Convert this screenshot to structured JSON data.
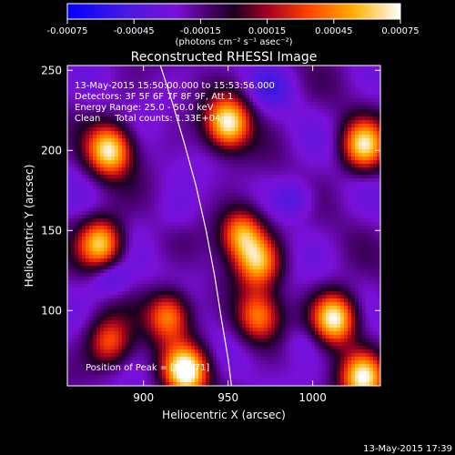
{
  "chart_data": {
    "type": "heatmap",
    "title": "Reconstructed RHESSI Image",
    "xlabel": "Heliocentric X (arcsec)",
    "ylabel": "Heliocentric Y (arcsec)",
    "xlim": [
      855,
      1040
    ],
    "ylim": [
      53,
      253
    ],
    "xticks": [
      900,
      950,
      1000
    ],
    "yticks": [
      100,
      150,
      200,
      250
    ],
    "grid": false,
    "colorbar": {
      "min": -0.00075,
      "max": 0.00075,
      "ticks": [
        "-0.00075",
        "-0.00045",
        "-0.00015",
        "0.00015",
        "0.00045",
        "0.00075"
      ],
      "unit_label": "(photons cm⁻² s⁻¹ asec⁻²)",
      "colormap": [
        "#0000ff",
        "#5a1ae6",
        "#9e3cf0",
        "#5a0090",
        "#220033",
        "#c80000",
        "#ff6000",
        "#ffd000",
        "#ffffff"
      ]
    },
    "annotations": [
      "13-May-2015 15:50:00.000 to 15:53:56.000",
      "Detectors: 3F 5F 6F 7F 8F 9F, Att 1",
      "Energy Range: 25.0 - 50.0 keV",
      "Clean     Total counts: 1.33E+04",
      "Position of Peak = [924,71]"
    ],
    "limb_curve": [
      [
        910,
        253
      ],
      [
        917,
        230
      ],
      [
        924,
        205
      ],
      [
        931,
        178
      ],
      [
        937,
        150
      ],
      [
        942,
        122
      ],
      [
        946,
        95
      ],
      [
        950,
        70
      ],
      [
        952,
        53
      ]
    ],
    "sources": [
      {
        "x": 880,
        "y": 200,
        "peak": 0.00065
      },
      {
        "x": 950,
        "y": 217,
        "peak": 0.0007
      },
      {
        "x": 1030,
        "y": 203,
        "peak": 0.0006
      },
      {
        "x": 958,
        "y": 148,
        "peak": 0.0005
      },
      {
        "x": 968,
        "y": 130,
        "peak": 0.00045
      },
      {
        "x": 875,
        "y": 142,
        "peak": 0.0006
      },
      {
        "x": 915,
        "y": 97,
        "peak": 0.00045
      },
      {
        "x": 1013,
        "y": 95,
        "peak": 0.00072
      },
      {
        "x": 968,
        "y": 96,
        "peak": 0.0004
      },
      {
        "x": 925,
        "y": 62,
        "peak": 0.00075
      },
      {
        "x": 1030,
        "y": 58,
        "peak": 0.00065
      },
      {
        "x": 880,
        "y": 80,
        "peak": 0.00035
      }
    ],
    "negative_patches": [
      {
        "x": 880,
        "y": 120,
        "level": -0.0005
      },
      {
        "x": 990,
        "y": 170,
        "level": -0.00045
      },
      {
        "x": 975,
        "y": 240,
        "level": -0.0004
      },
      {
        "x": 995,
        "y": 80,
        "level": -0.00035
      },
      {
        "x": 920,
        "y": 160,
        "level": -0.0003
      }
    ]
  },
  "footer": {
    "timestamp": "13-May-2015 17:39"
  }
}
